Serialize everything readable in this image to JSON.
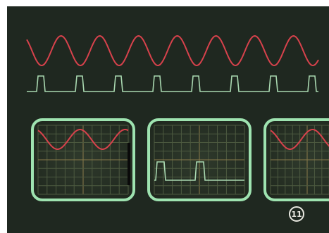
{
  "figure_label": "11"
}
